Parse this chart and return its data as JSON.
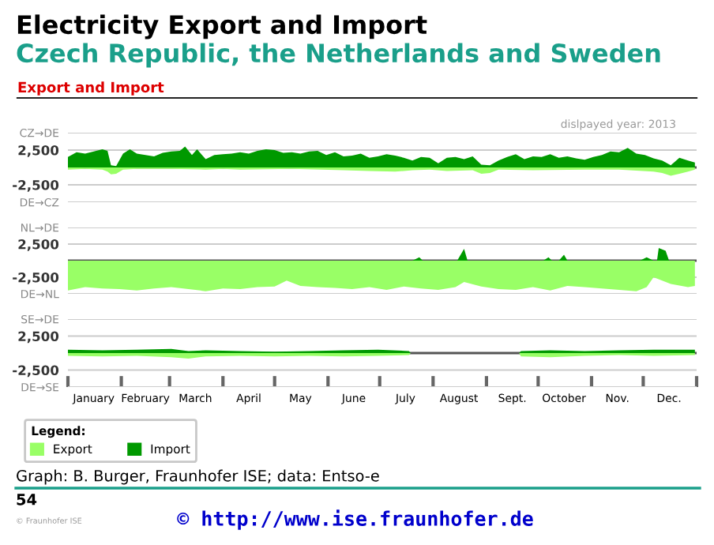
{
  "chart_data": [
    {
      "type": "area",
      "title": "Electricity Export and Import",
      "subtitle": "Czech Republic, the Netherlands and Sweden",
      "annotations": [
        "Export and Import",
        "dislpayed year: 2013",
        "Graph: B. Burger, Fraunhofer ISE; data: Entso-e",
        "54",
        "© Fraunhofer ISE",
        "© http://www.ise.fraunhofer.de"
      ],
      "xlim": [
        "2013-01-01",
        "2014-01-01"
      ],
      "ylim": [
        -5000,
        5000
      ],
      "yticks": [
        {
          "value": 5000,
          "label": "CZ→DE"
        },
        {
          "value": 2500,
          "label": "2,500"
        },
        {
          "value": 0,
          "label": null
        },
        {
          "value": -2500,
          "label": "-2,500"
        },
        {
          "value": -5000,
          "label": "DE→CZ"
        }
      ],
      "grid": "y",
      "tick_labels": "y",
      "legend": false,
      "series": [
        {
          "color": "#99ff66",
          "x": [
            "2013-01-01",
            "2013-01-11",
            "2013-01-21",
            "2013-01-24",
            "2013-01-26",
            "2013-01-29",
            "2013-02-02",
            "2013-02-10",
            "2013-03-02",
            "2013-03-22",
            "2013-04-01",
            "2013-04-11",
            "2013-05-11",
            "2013-06-10",
            "2013-06-25",
            "2013-07-10",
            "2013-07-15",
            "2013-07-20",
            "2013-07-30",
            "2013-08-09",
            "2013-08-24",
            "2013-08-29",
            "2013-09-03",
            "2013-09-08",
            "2013-09-28",
            "2013-10-28",
            "2013-11-17",
            "2013-12-07",
            "2013-12-12",
            "2013-12-17",
            "2013-12-22",
            "2013-12-27",
            "2013-12-31"
          ],
          "values": [
            -300,
            -200,
            -300,
            -600,
            -1000,
            -900,
            -300,
            -200,
            -200,
            -300,
            -200,
            -300,
            -200,
            -400,
            -500,
            -600,
            -500,
            -400,
            -300,
            -500,
            -400,
            -900,
            -800,
            -300,
            -400,
            -300,
            -300,
            -600,
            -800,
            -1200,
            -900,
            -600,
            -300
          ]
        },
        {
          "color": "#009900",
          "x": [
            "2013-01-01",
            "2013-01-06",
            "2013-01-11",
            "2013-01-16",
            "2013-01-21",
            "2013-01-24",
            "2013-01-26",
            "2013-01-29",
            "2013-02-02",
            "2013-02-06",
            "2013-02-10",
            "2013-02-15",
            "2013-02-20",
            "2013-02-25",
            "2013-03-02",
            "2013-03-07",
            "2013-03-10",
            "2013-03-14",
            "2013-03-17",
            "2013-03-22",
            "2013-03-27",
            "2013-04-01",
            "2013-04-06",
            "2013-04-11",
            "2013-04-16",
            "2013-04-21",
            "2013-04-26",
            "2013-05-01",
            "2013-05-06",
            "2013-05-11",
            "2013-05-16",
            "2013-05-21",
            "2013-05-26",
            "2013-05-31",
            "2013-06-05",
            "2013-06-10",
            "2013-06-15",
            "2013-06-20",
            "2013-06-25",
            "2013-06-30",
            "2013-07-05",
            "2013-07-10",
            "2013-07-15",
            "2013-07-20",
            "2013-07-25",
            "2013-07-30",
            "2013-08-04",
            "2013-08-09",
            "2013-08-14",
            "2013-08-19",
            "2013-08-24",
            "2013-08-29",
            "2013-09-03",
            "2013-09-08",
            "2013-09-13",
            "2013-09-18",
            "2013-09-23",
            "2013-09-28",
            "2013-10-03",
            "2013-10-08",
            "2013-10-13",
            "2013-10-18",
            "2013-10-23",
            "2013-10-28",
            "2013-11-02",
            "2013-11-07",
            "2013-11-12",
            "2013-11-17",
            "2013-11-22",
            "2013-11-27",
            "2013-12-02",
            "2013-12-07",
            "2013-12-12",
            "2013-12-17",
            "2013-12-22",
            "2013-12-27",
            "2013-12-31"
          ],
          "values": [
            1500,
            2200,
            2000,
            2300,
            2600,
            2400,
            300,
            200,
            2000,
            2600,
            2000,
            1800,
            1600,
            2100,
            2300,
            2400,
            3000,
            1800,
            2600,
            1200,
            1800,
            1900,
            2000,
            2200,
            2000,
            2400,
            2600,
            2500,
            2100,
            2200,
            2000,
            2300,
            2400,
            1800,
            2200,
            1600,
            1700,
            2000,
            1400,
            1600,
            1900,
            1700,
            1400,
            1000,
            1500,
            1400,
            600,
            1400,
            1500,
            1200,
            1600,
            400,
            300,
            1000,
            1500,
            1900,
            1200,
            1600,
            1500,
            1900,
            1400,
            1600,
            1300,
            1100,
            1500,
            1800,
            2300,
            2200,
            2800,
            2000,
            1800,
            1300,
            1000,
            300,
            1400,
            1000,
            700
          ]
        }
      ]
    },
    {
      "type": "area",
      "xlim": [
        "2013-01-01",
        "2014-01-01"
      ],
      "ylim": [
        -5000,
        5000
      ],
      "yticks": [
        {
          "value": 5000,
          "label": "NL→DE"
        },
        {
          "value": 2500,
          "label": "2,500"
        },
        {
          "value": 0,
          "label": null
        },
        {
          "value": -2500,
          "label": "-2,500"
        },
        {
          "value": -5000,
          "label": "DE→NL"
        }
      ],
      "grid": "y",
      "tick_labels": "y",
      "legend": false,
      "series": [
        {
          "color": "#99ff66",
          "x": [
            "2013-01-01",
            "2013-01-11",
            "2013-01-21",
            "2013-01-31",
            "2013-02-10",
            "2013-02-20",
            "2013-03-02",
            "2013-03-12",
            "2013-03-22",
            "2013-04-01",
            "2013-04-11",
            "2013-04-21",
            "2013-05-01",
            "2013-05-08",
            "2013-05-16",
            "2013-05-26",
            "2013-06-05",
            "2013-06-15",
            "2013-06-25",
            "2013-07-05",
            "2013-07-15",
            "2013-07-25",
            "2013-08-04",
            "2013-08-14",
            "2013-08-19",
            "2013-08-29",
            "2013-09-08",
            "2013-09-18",
            "2013-09-28",
            "2013-10-08",
            "2013-10-18",
            "2013-10-28",
            "2013-11-07",
            "2013-11-17",
            "2013-11-27",
            "2013-12-03",
            "2013-12-07",
            "2013-12-12",
            "2013-12-17",
            "2013-12-27",
            "2013-12-31"
          ],
          "values": [
            -4500,
            -4000,
            -4200,
            -4300,
            -4500,
            -4200,
            -4000,
            -4300,
            -4600,
            -4200,
            -4300,
            -4000,
            -3900,
            -3000,
            -3800,
            -4000,
            -4100,
            -4300,
            -4000,
            -4400,
            -3900,
            -4200,
            -4400,
            -4000,
            -3200,
            -3900,
            -4300,
            -4400,
            -4000,
            -4500,
            -3800,
            -4000,
            -4200,
            -4400,
            -4600,
            -4000,
            -2500,
            -3000,
            -3500,
            -4000,
            -3800
          ]
        },
        {
          "color": "#009900",
          "x": [
            "2013-01-01",
            "2013-07-20",
            "2013-07-24",
            "2013-07-26",
            "2013-08-15",
            "2013-08-19",
            "2013-08-21",
            "2013-10-04",
            "2013-10-07",
            "2013-10-09",
            "2013-10-13",
            "2013-10-16",
            "2013-10-18",
            "2013-11-29",
            "2013-12-03",
            "2013-12-07",
            "2013-12-09",
            "2013-12-10",
            "2013-12-14",
            "2013-12-16",
            "2013-12-31"
          ],
          "values": [
            0,
            0,
            500,
            0,
            0,
            1800,
            0,
            0,
            500,
            0,
            0,
            900,
            0,
            0,
            500,
            0,
            0,
            1900,
            1500,
            0,
            0
          ]
        }
      ]
    },
    {
      "type": "area",
      "xlim": [
        "2013-01-01",
        "2014-01-01"
      ],
      "ylim": [
        -5000,
        5000
      ],
      "yticks": [
        {
          "value": 5000,
          "label": "SE→DE"
        },
        {
          "value": 2500,
          "label": "2,500"
        },
        {
          "value": 0,
          "label": null
        },
        {
          "value": -2500,
          "label": "-2,500"
        },
        {
          "value": -5000,
          "label": "DE→SE"
        }
      ],
      "xticks": [
        {
          "value": "2013-01-01",
          "label": null
        },
        {
          "value": "2013-01-16",
          "label": "January"
        },
        {
          "value": "2013-02-01",
          "label": null
        },
        {
          "value": "2013-02-15",
          "label": "February"
        },
        {
          "value": "2013-03-01",
          "label": null
        },
        {
          "value": "2013-03-16",
          "label": "March"
        },
        {
          "value": "2013-04-01",
          "label": null
        },
        {
          "value": "2013-04-16",
          "label": "April"
        },
        {
          "value": "2013-05-01",
          "label": null
        },
        {
          "value": "2013-05-16",
          "label": "May"
        },
        {
          "value": "2013-06-01",
          "label": null
        },
        {
          "value": "2013-06-16",
          "label": "June"
        },
        {
          "value": "2013-07-01",
          "label": null
        },
        {
          "value": "2013-07-16",
          "label": "July"
        },
        {
          "value": "2013-08-01",
          "label": null
        },
        {
          "value": "2013-08-16",
          "label": "August"
        },
        {
          "value": "2013-09-01",
          "label": null
        },
        {
          "value": "2013-09-16",
          "label": "Sept."
        },
        {
          "value": "2013-10-01",
          "label": null
        },
        {
          "value": "2013-10-16",
          "label": "October"
        },
        {
          "value": "2013-11-01",
          "label": null
        },
        {
          "value": "2013-11-16",
          "label": "Nov."
        },
        {
          "value": "2013-12-01",
          "label": null
        },
        {
          "value": "2013-12-16",
          "label": "Dec."
        },
        {
          "value": "2014-01-01",
          "label": null
        }
      ],
      "grid": "y",
      "legend": "bottom",
      "legend_title": "Legend:",
      "series": [
        {
          "name": "Export",
          "color": "#99ff66",
          "x": [
            "2013-01-01",
            "2013-01-21",
            "2013-02-10",
            "2013-03-02",
            "2013-03-12",
            "2013-03-22",
            "2013-04-11",
            "2013-05-01",
            "2013-05-21",
            "2013-06-10",
            "2013-06-30",
            "2013-07-18",
            "2013-07-19",
            "2013-09-20",
            "2013-09-21",
            "2013-10-08",
            "2013-10-28",
            "2013-11-17",
            "2013-12-07",
            "2013-12-31"
          ],
          "values": [
            -400,
            -500,
            -400,
            -600,
            -800,
            -500,
            -400,
            -500,
            -400,
            -500,
            -400,
            -300,
            0,
            0,
            -500,
            -600,
            -400,
            -300,
            -400,
            -300
          ]
        },
        {
          "name": "Import",
          "color": "#009900",
          "x": [
            "2013-01-01",
            "2013-01-21",
            "2013-02-10",
            "2013-03-02",
            "2013-03-12",
            "2013-03-22",
            "2013-04-11",
            "2013-05-01",
            "2013-05-21",
            "2013-06-10",
            "2013-06-30",
            "2013-07-18",
            "2013-07-19",
            "2013-09-20",
            "2013-09-21",
            "2013-10-08",
            "2013-10-28",
            "2013-11-17",
            "2013-12-07",
            "2013-12-31"
          ],
          "values": [
            500,
            400,
            500,
            600,
            300,
            400,
            300,
            200,
            300,
            400,
            500,
            300,
            0,
            0,
            300,
            400,
            300,
            400,
            500,
            500
          ]
        }
      ]
    }
  ]
}
